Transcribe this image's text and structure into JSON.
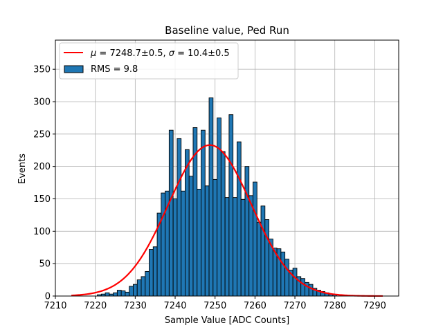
{
  "chart_data": {
    "type": "bar",
    "title": "Baseline value, Ped Run",
    "xlabel": "Sample Value [ADC Counts]",
    "ylabel": "Events",
    "xlim": [
      7210,
      7296
    ],
    "ylim": [
      0,
      395
    ],
    "x_ticks": [
      7210,
      7220,
      7230,
      7240,
      7250,
      7260,
      7270,
      7280,
      7290
    ],
    "y_ticks": [
      0,
      50,
      100,
      150,
      200,
      250,
      300,
      350
    ],
    "grid": true,
    "legend_position": "top-left",
    "colors": {
      "bars": "#1f77b4",
      "bar_edge": "#000000",
      "fit": "#ff0000",
      "grid": "#b0b0b0"
    },
    "histogram": {
      "name": "RMS = 9.8",
      "bin_width": 1,
      "bin_centers": [
        7221,
        7222,
        7223,
        7224,
        7225,
        7226,
        7227,
        7228,
        7229,
        7230,
        7231,
        7232,
        7233,
        7234,
        7235,
        7236,
        7237,
        7238,
        7239,
        7240,
        7241,
        7242,
        7243,
        7244,
        7245,
        7246,
        7247,
        7248,
        7249,
        7250,
        7251,
        7252,
        7253,
        7254,
        7255,
        7256,
        7257,
        7258,
        7259,
        7260,
        7261,
        7262,
        7263,
        7264,
        7265,
        7266,
        7267,
        7268,
        7269,
        7270,
        7271,
        7272,
        7273,
        7274,
        7275,
        7276,
        7277,
        7278,
        7279,
        7280
      ],
      "counts": [
        2,
        3,
        5,
        3,
        5,
        9,
        8,
        6,
        15,
        18,
        25,
        30,
        38,
        72,
        76,
        128,
        159,
        162,
        256,
        150,
        243,
        162,
        226,
        185,
        260,
        165,
        256,
        170,
        306,
        180,
        275,
        223,
        152,
        280,
        152,
        238,
        149,
        200,
        155,
        176,
        114,
        139,
        118,
        88,
        74,
        73,
        68,
        57,
        40,
        43,
        30,
        27,
        21,
        18,
        12,
        9,
        7,
        5,
        3,
        2
      ]
    },
    "fit": {
      "name_prefix": "μ = 7248.7±0.5, σ = 10.4±0.5",
      "mu": 7248.7,
      "sigma": 10.4,
      "amplitude": 233,
      "x_range": [
        7214,
        7292
      ]
    },
    "legend": [
      {
        "kind": "line",
        "label": "$\\mu = 7248.7\\pm0.5$, $\\sigma = 10.4\\pm0.5$"
      },
      {
        "kind": "patch",
        "label": "RMS = 9.8"
      }
    ],
    "legend_display": {
      "fit_mu_symbol": "μ",
      "fit_mu_text": " = 7248.7±0.5, ",
      "fit_sigma_symbol": "σ",
      "fit_sigma_text": " = 10.4±0.5",
      "hist_label": "RMS = 9.8"
    }
  }
}
